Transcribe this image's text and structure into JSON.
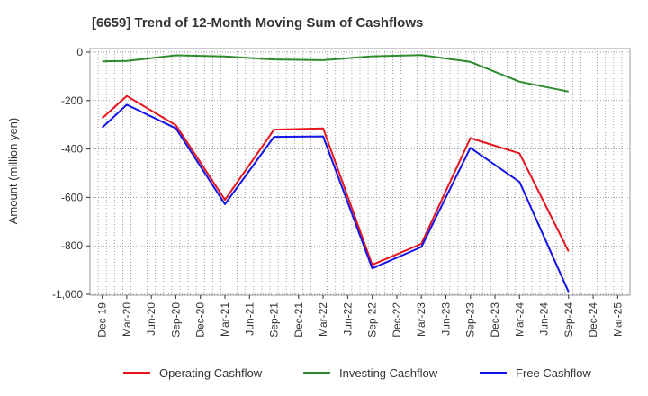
{
  "chart_data": {
    "type": "line",
    "title": "[6659]  Trend of 12-Month Moving Sum of Cashflows",
    "ylabel": "Amount (million yen)",
    "xlabel": "",
    "ylim": [
      -1000,
      0
    ],
    "yticks": [
      0,
      -200,
      -400,
      -600,
      -800,
      -1000
    ],
    "ytick_labels": [
      "0",
      "-200",
      "-400",
      "-600",
      "-800",
      "-1,000"
    ],
    "categories": [
      "Dec-19",
      "Mar-20",
      "Jun-20",
      "Sep-20",
      "Dec-20",
      "Mar-21",
      "Jun-21",
      "Sep-21",
      "Dec-21",
      "Mar-22",
      "Jun-22",
      "Sep-22",
      "Dec-22",
      "Mar-23",
      "Jun-23",
      "Sep-23",
      "Dec-23",
      "Mar-24",
      "Jun-24",
      "Sep-24",
      "Dec-24",
      "Mar-25"
    ],
    "grid": true,
    "legend_position": "bottom",
    "series": [
      {
        "name": "Operating Cashflow",
        "color": "#e8141b",
        "values": [
          -273,
          -181,
          null,
          -302,
          null,
          -610,
          null,
          -320,
          null,
          -315,
          null,
          -878,
          null,
          -792,
          null,
          -355,
          null,
          -418,
          null,
          -823,
          null,
          null
        ]
      },
      {
        "name": "Investing Cashflow",
        "color": "#2e8b2e",
        "values": [
          -38,
          -36,
          null,
          -13,
          null,
          -18,
          null,
          -30,
          null,
          -33,
          null,
          -17,
          null,
          -12,
          null,
          -40,
          null,
          -122,
          null,
          -163,
          null,
          null
        ]
      },
      {
        "name": "Free Cashflow",
        "color": "#1414e8",
        "values": [
          -312,
          -217,
          null,
          -315,
          null,
          -628,
          null,
          -350,
          null,
          -348,
          null,
          -893,
          null,
          -805,
          null,
          -395,
          null,
          -536,
          null,
          -990,
          null,
          null
        ]
      }
    ]
  }
}
